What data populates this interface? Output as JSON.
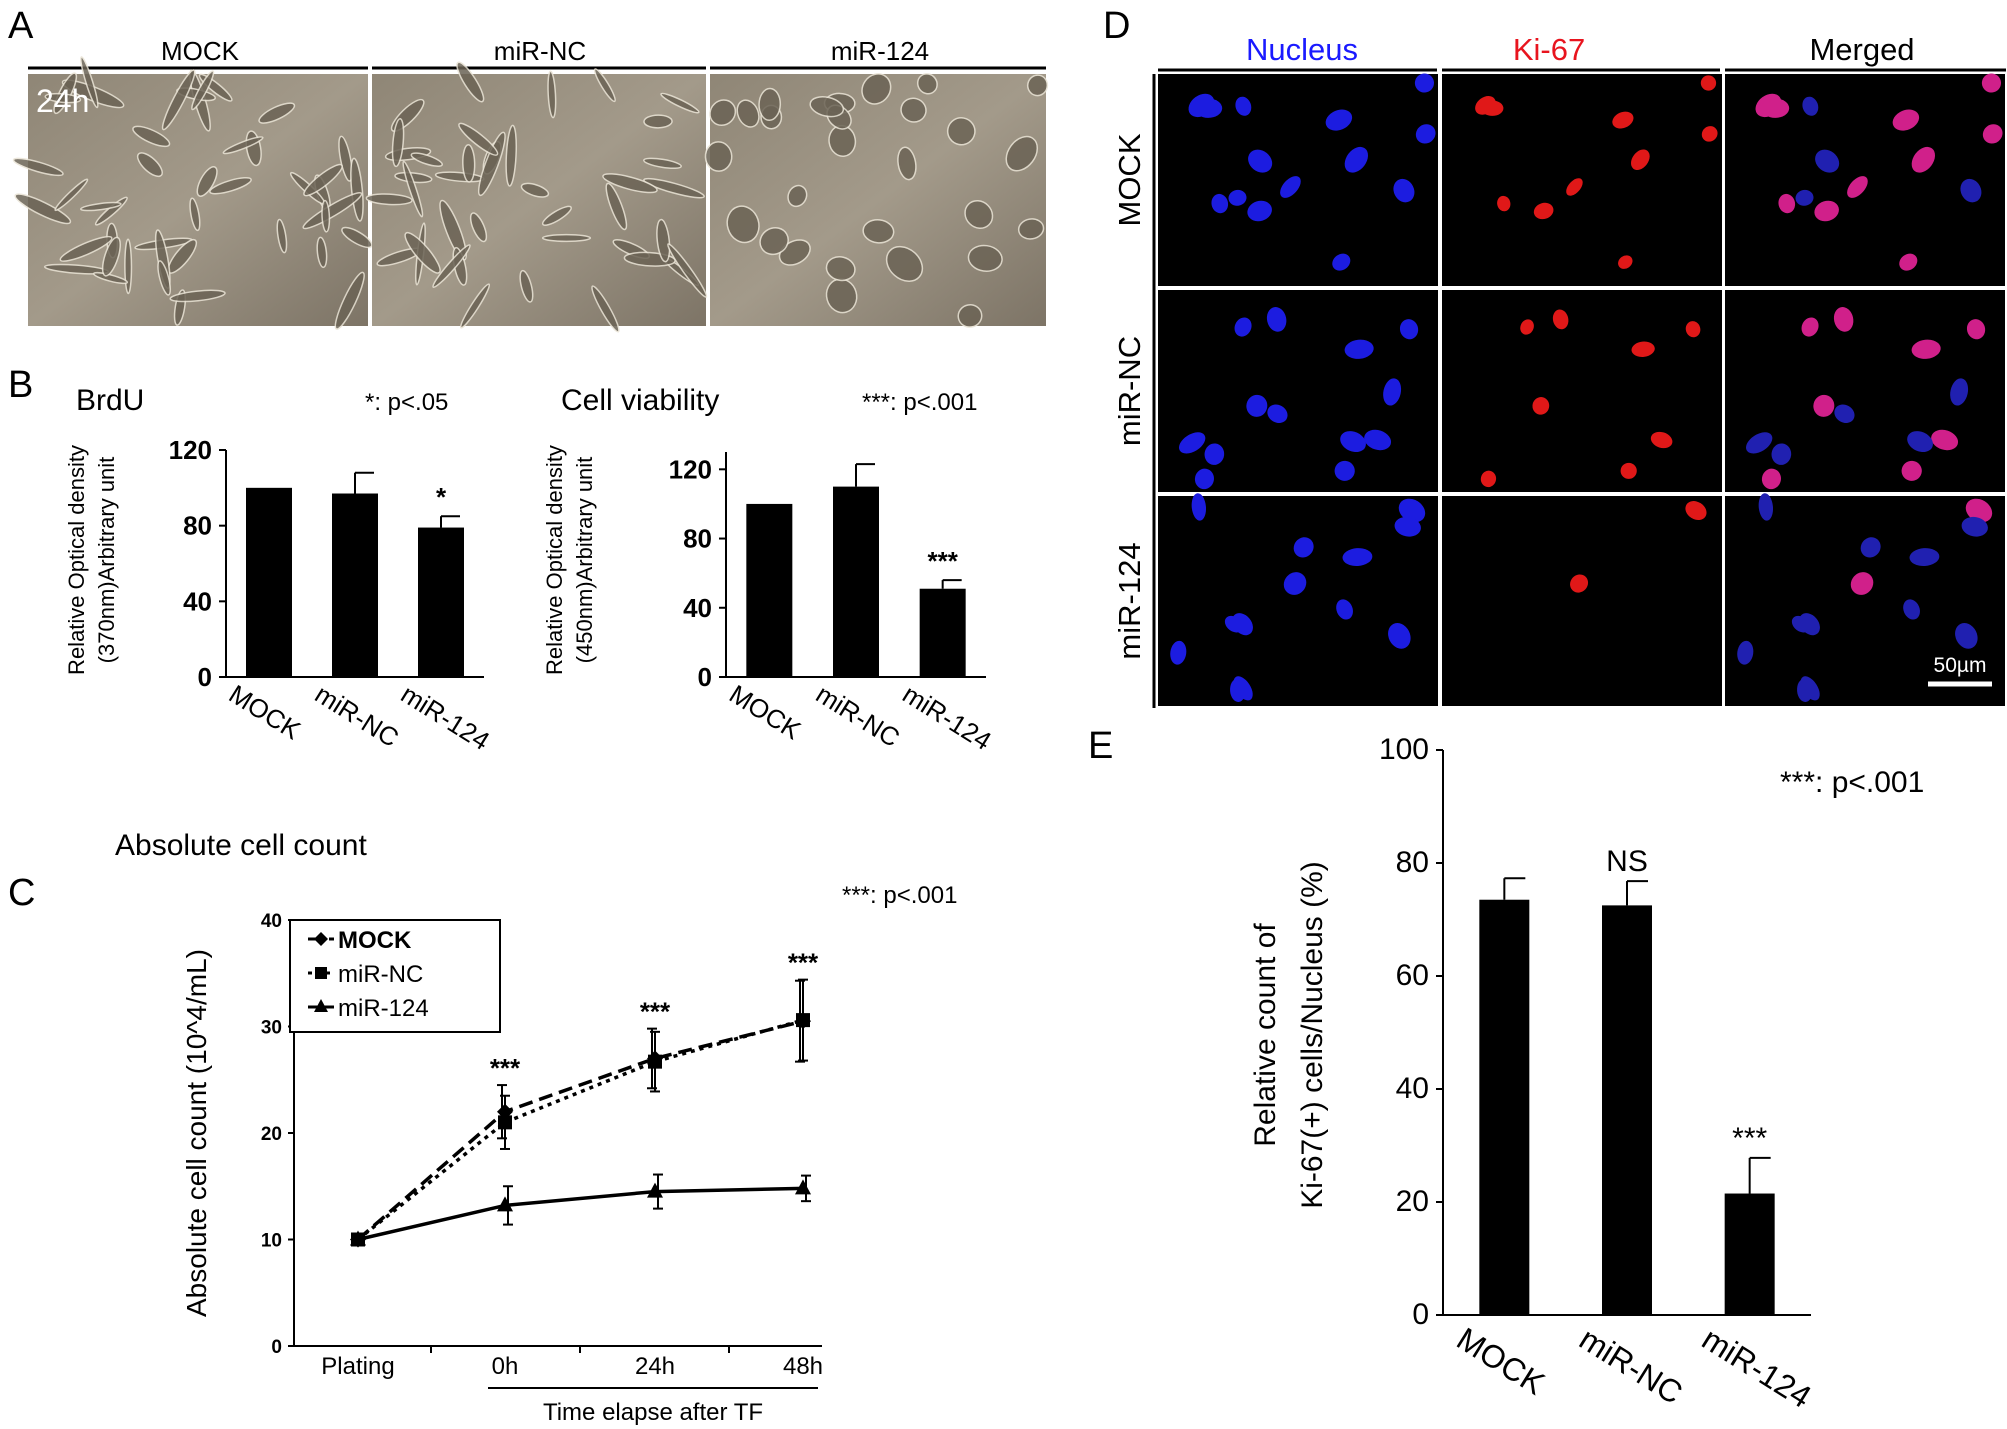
{
  "panels": {
    "A": {
      "label": "A",
      "columns": [
        "MOCK",
        "miR-NC",
        "miR-124"
      ],
      "time_label": "24h"
    },
    "D": {
      "label": "D",
      "columns": [
        {
          "text": "Nucleus",
          "color": "#1a1aff"
        },
        {
          "text": "Ki-67",
          "color": "#e8141e"
        },
        {
          "text": "Merged",
          "color": "#000000"
        }
      ],
      "rows": [
        "MOCK",
        "miR-NC",
        "miR-124"
      ],
      "scale_bar": "50µm"
    }
  },
  "chart_data": [
    {
      "panel": "B",
      "panel_label": "B",
      "type": "bar",
      "title": "BrdU",
      "significance_note": "*: p<.05",
      "ylabel_line1": "Relative Optical density",
      "ylabel_line2": "(370nm)Arbitrary unit",
      "categories": [
        "MOCK",
        "miR-NC",
        "miR-124"
      ],
      "values": [
        100,
        97,
        79
      ],
      "errors": [
        0,
        11,
        6
      ],
      "significance": [
        "",
        "",
        "*"
      ],
      "ylim": [
        0,
        120
      ],
      "yticks": [
        "0",
        "40",
        "80",
        "120"
      ],
      "bar_color": "#000000"
    },
    {
      "panel": "B2",
      "type": "bar",
      "title": "Cell viability",
      "significance_note": "***: p<.001",
      "ylabel_line1": "Relative Optical density",
      "ylabel_line2": "(450nm)Arbitrary unit",
      "categories": [
        "MOCK",
        "miR-NC",
        "miR-124"
      ],
      "values": [
        100,
        110,
        51
      ],
      "errors": [
        0,
        13,
        5
      ],
      "significance": [
        "",
        "",
        "***"
      ],
      "ylim": [
        0,
        130
      ],
      "yticks": [
        "0",
        "40",
        "80",
        "120"
      ],
      "bar_color": "#000000"
    },
    {
      "panel": "C",
      "panel_label": "C",
      "type": "line",
      "title": "Absolute cell count",
      "significance_note": "***: p<.001",
      "ylabel": "Absolute cell count (10^4/mL)",
      "xlabel": "Time elapse after TF",
      "categories": [
        "Plating",
        "0h",
        "24h",
        "48h"
      ],
      "ylim": [
        0,
        40
      ],
      "yticks": [
        "0",
        "10",
        "20",
        "30",
        "40"
      ],
      "series": [
        {
          "name": "MOCK",
          "values": [
            10,
            22,
            27,
            30.5
          ],
          "errors": [
            0,
            2.5,
            2.8,
            3.8
          ]
        },
        {
          "name": "miR-NC",
          "values": [
            10,
            21,
            26.7,
            30.6
          ],
          "errors": [
            0,
            2.5,
            2.8,
            3.8
          ]
        },
        {
          "name": "miR-124",
          "values": [
            10,
            13.2,
            14.5,
            14.8
          ],
          "errors": [
            0,
            1.8,
            1.6,
            1.2
          ]
        }
      ],
      "significance": [
        "",
        "***",
        "***",
        "***"
      ]
    },
    {
      "panel": "E",
      "panel_label": "E",
      "type": "bar",
      "significance_note": "***: p<.001",
      "ylabel_line1": "Relative count of",
      "ylabel_line2": "Ki-67(+) cells/Nucleus (%)",
      "categories": [
        "MOCK",
        "miR-NC",
        "miR-124"
      ],
      "values": [
        73.5,
        72.5,
        21.5
      ],
      "errors": [
        3.8,
        4.3,
        6.3
      ],
      "significance": [
        "",
        "NS",
        "***"
      ],
      "ylim": [
        0,
        100
      ],
      "yticks": [
        "0",
        "20",
        "40",
        "60",
        "80",
        "100"
      ],
      "bar_color": "#000000"
    }
  ]
}
